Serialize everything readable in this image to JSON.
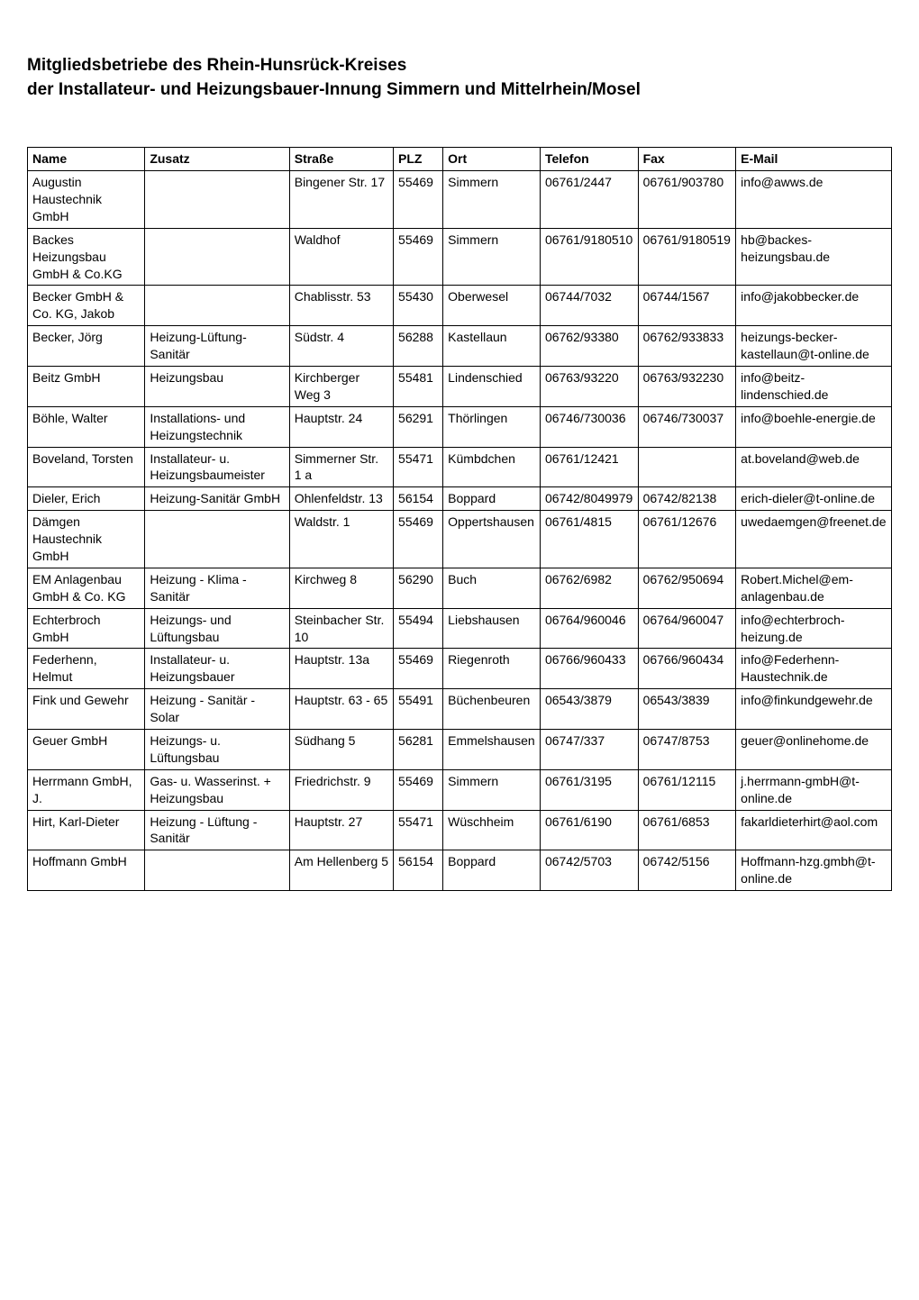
{
  "title": {
    "line1": "Mitgliedsbetriebe des Rhein-Hunsrück-Kreises",
    "line2": "der Installateur- und Heizungsbauer-Innung Simmern und Mittelrhein/Mosel"
  },
  "table": {
    "columns": [
      {
        "key": "name",
        "label": "Name",
        "class": "col-name"
      },
      {
        "key": "zusatz",
        "label": "Zusatz",
        "class": "col-zusatz"
      },
      {
        "key": "strasse",
        "label": "Straße",
        "class": "col-strasse"
      },
      {
        "key": "plz",
        "label": "PLZ",
        "class": "col-plz"
      },
      {
        "key": "ort",
        "label": "Ort",
        "class": "col-ort"
      },
      {
        "key": "telefon",
        "label": "Telefon",
        "class": "col-telefon"
      },
      {
        "key": "fax",
        "label": "Fax",
        "class": "col-fax"
      },
      {
        "key": "email",
        "label": "E-Mail",
        "class": "col-email"
      }
    ],
    "rows": [
      {
        "name": "Augustin Haustechnik GmbH",
        "zusatz": "",
        "strasse": "Bingener Str. 17",
        "plz": "55469",
        "ort": "Simmern",
        "telefon": "06761/2447",
        "fax": "06761/903780",
        "email": "info@awws.de"
      },
      {
        "name": "Backes Heizungsbau GmbH & Co.KG",
        "zusatz": "",
        "strasse": "Waldhof",
        "plz": "55469",
        "ort": "Simmern",
        "telefon": "06761/9180510",
        "fax": "06761/9180519",
        "email": "hb@backes-heizungsbau.de"
      },
      {
        "name": "Becker GmbH & Co. KG, Jakob",
        "zusatz": "",
        "strasse": "Chablisstr. 53",
        "plz": "55430",
        "ort": "Oberwesel",
        "telefon": "06744/7032",
        "fax": "06744/1567",
        "email": "info@jakobbecker.de"
      },
      {
        "name": "Becker, Jörg",
        "zusatz": "Heizung-Lüftung-Sanitär",
        "strasse": "Südstr. 4",
        "plz": "56288",
        "ort": "Kastellaun",
        "telefon": "06762/93380",
        "fax": "06762/933833",
        "email": "heizungs-becker-kastellaun@t-online.de"
      },
      {
        "name": "Beitz GmbH",
        "zusatz": "Heizungsbau",
        "strasse": "Kirchberger Weg 3",
        "plz": "55481",
        "ort": "Lindenschied",
        "telefon": "06763/93220",
        "fax": "06763/932230",
        "email": "info@beitz-lindenschied.de"
      },
      {
        "name": "Böhle, Walter",
        "zusatz": "Installations- und Heizungstechnik",
        "strasse": "Hauptstr. 24",
        "plz": "56291",
        "ort": "Thörlingen",
        "telefon": "06746/730036",
        "fax": "06746/730037",
        "email": "info@boehle-energie.de"
      },
      {
        "name": "Boveland, Torsten",
        "zusatz": "Installateur- u. Heizungsbaumeister",
        "strasse": "Simmerner Str. 1 a",
        "plz": "55471",
        "ort": "Kümbdchen",
        "telefon": "06761/12421",
        "fax": "",
        "email": "at.boveland@web.de"
      },
      {
        "name": "Dieler, Erich",
        "zusatz": "Heizung-Sanitär GmbH",
        "strasse": "Ohlenfeldstr. 13",
        "plz": "56154",
        "ort": "Boppard",
        "telefon": "06742/8049979",
        "fax": "06742/82138",
        "email": "erich-dieler@t-online.de"
      },
      {
        "name": "Dämgen Haustechnik GmbH",
        "zusatz": "",
        "strasse": "Waldstr. 1",
        "plz": "55469",
        "ort": "Oppertshausen",
        "telefon": "06761/4815",
        "fax": "06761/12676",
        "email": "uwedaemgen@freenet.de"
      },
      {
        "name": "EM Anlagenbau GmbH & Co. KG",
        "zusatz": "Heizung - Klima - Sanitär",
        "strasse": "Kirchweg 8",
        "plz": "56290",
        "ort": "Buch",
        "telefon": "06762/6982",
        "fax": "06762/950694",
        "email": "Robert.Michel@em-anlagenbau.de"
      },
      {
        "name": "Echterbroch GmbH",
        "zusatz": "Heizungs- und Lüftungsbau",
        "strasse": "Steinbacher Str. 10",
        "plz": "55494",
        "ort": "Liebshausen",
        "telefon": "06764/960046",
        "fax": "06764/960047",
        "email": "info@echterbroch-heizung.de"
      },
      {
        "name": "Federhenn, Helmut",
        "zusatz": "Installateur- u. Heizungsbauer",
        "strasse": "Hauptstr. 13a",
        "plz": "55469",
        "ort": "Riegenroth",
        "telefon": "06766/960433",
        "fax": "06766/960434",
        "email": "info@Federhenn-Haustechnik.de"
      },
      {
        "name": "Fink und Gewehr",
        "zusatz": "Heizung - Sanitär - Solar",
        "strasse": "Hauptstr. 63 - 65",
        "plz": "55491",
        "ort": "Büchenbeuren",
        "telefon": "06543/3879",
        "fax": "06543/3839",
        "email": "info@finkundgewehr.de"
      },
      {
        "name": "Geuer GmbH",
        "zusatz": "Heizungs- u. Lüftungsbau",
        "strasse": "Südhang 5",
        "plz": "56281",
        "ort": "Emmelshausen",
        "telefon": "06747/337",
        "fax": "06747/8753",
        "email": "geuer@onlinehome.de"
      },
      {
        "name": "Herrmann GmbH, J.",
        "zusatz": "Gas- u. Wasserinst. + Heizungsbau",
        "strasse": "Friedrichstr. 9",
        "plz": "55469",
        "ort": "Simmern",
        "telefon": "06761/3195",
        "fax": "06761/12115",
        "email": "j.herrmann-gmbH@t-online.de"
      },
      {
        "name": "Hirt, Karl-Dieter",
        "zusatz": "Heizung - Lüftung - Sanitär",
        "strasse": "Hauptstr. 27",
        "plz": "55471",
        "ort": "Wüschheim",
        "telefon": "06761/6190",
        "fax": "06761/6853",
        "email": "fakarldieterhirt@aol.com"
      },
      {
        "name": "Hoffmann GmbH",
        "zusatz": "",
        "strasse": "Am Hellenberg 5",
        "plz": "56154",
        "ort": "Boppard",
        "telefon": "06742/5703",
        "fax": "06742/5156",
        "email": "Hoffmann-hzg.gmbh@t-online.de"
      }
    ]
  },
  "styling": {
    "background_color": "#ffffff",
    "text_color": "#000000",
    "border_color": "#000000",
    "title_fontsize": 19,
    "title_fontweight": "bold",
    "table_fontsize": 14,
    "font_family": "Arial, Helvetica, sans-serif"
  }
}
